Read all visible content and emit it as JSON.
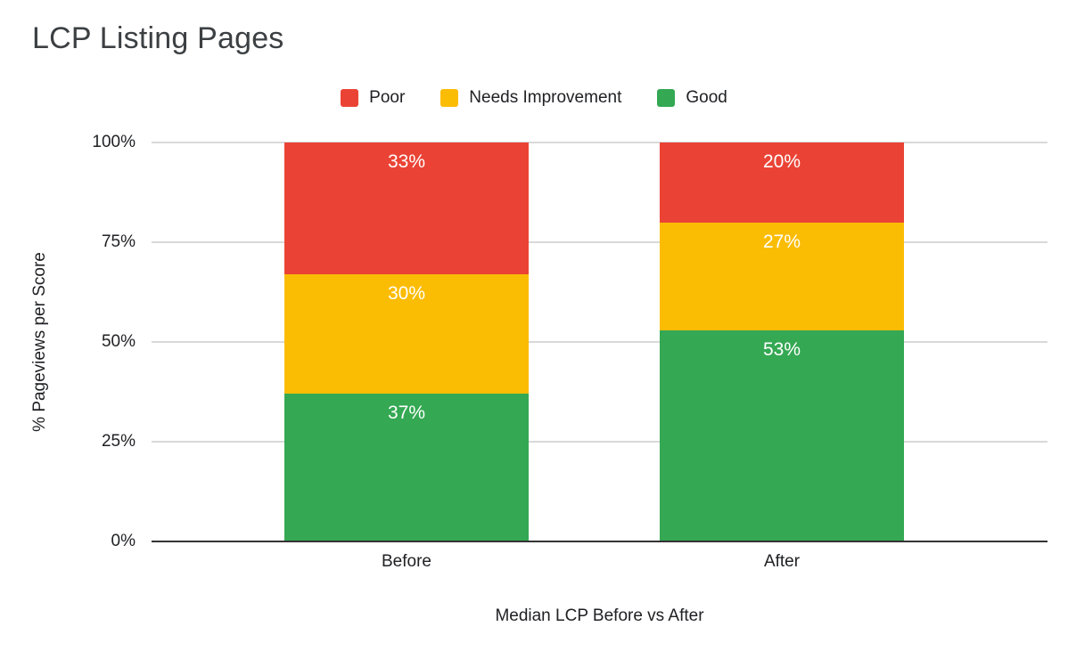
{
  "chart_data": {
    "type": "bar",
    "stacked": true,
    "title": "LCP Listing Pages",
    "xlabel": "Median LCP Before vs After",
    "ylabel": "% Pageviews per Score",
    "categories": [
      "Before",
      "After"
    ],
    "series": [
      {
        "name": "Poor",
        "color": "#EA4335",
        "values": [
          33,
          20
        ]
      },
      {
        "name": "Needs Improvement",
        "color": "#FBBC04",
        "values": [
          30,
          27
        ]
      },
      {
        "name": "Good",
        "color": "#34A853",
        "values": [
          37,
          53
        ]
      }
    ],
    "y_ticks": [
      {
        "label": "100%",
        "value": 100
      },
      {
        "label": "75%",
        "value": 75
      },
      {
        "label": "50%",
        "value": 50
      },
      {
        "label": "25%",
        "value": 25
      },
      {
        "label": "0%",
        "value": 0
      }
    ],
    "ylim": [
      0,
      100
    ],
    "grid": true,
    "legend_position": "top",
    "value_label_suffix": "%"
  }
}
